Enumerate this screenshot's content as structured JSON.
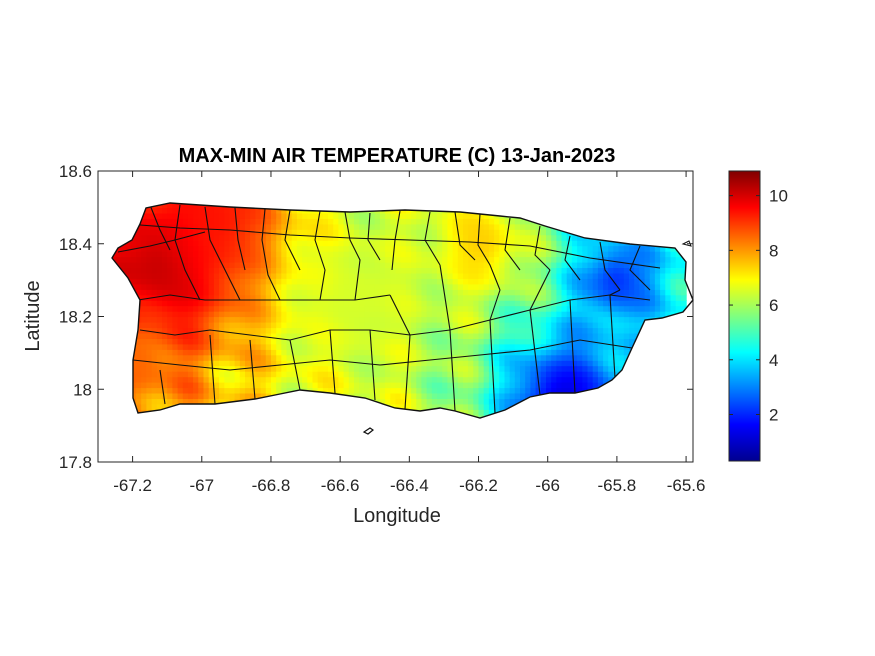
{
  "chart_data": {
    "type": "heatmap",
    "title": "MAX-MIN AIR TEMPERATURE (C) 13-Jan-2023",
    "xlabel": "Longitude",
    "ylabel": "Latitude",
    "xlim": [
      -67.3,
      -65.58
    ],
    "ylim": [
      17.8,
      18.6
    ],
    "xticks": [
      -67.2,
      -67,
      -66.8,
      -66.6,
      -66.4,
      -66.2,
      -66,
      -65.8,
      -65.6
    ],
    "xtick_labels": [
      "-67.2",
      "-67",
      "-66.8",
      "-66.6",
      "-66.4",
      "-66.2",
      "-66",
      "-65.8",
      "-65.6"
    ],
    "yticks": [
      17.8,
      18,
      18.2,
      18.4,
      18.6
    ],
    "ytick_labels": [
      "17.8",
      "18",
      "18.2",
      "18.4",
      "18.6"
    ],
    "colorbar": {
      "min": 0.3,
      "max": 10.9,
      "ticks": [
        2,
        4,
        6,
        8,
        10
      ],
      "tick_labels": [
        "2",
        "4",
        "6",
        "8",
        "10"
      ],
      "colormap": "jet"
    },
    "hotspots": [
      {
        "lon": -67.1,
        "lat": 18.35,
        "value": 10.5,
        "spread": 0.22
      },
      {
        "lon": -66.95,
        "lat": 18.45,
        "value": 9.5,
        "spread": 0.2
      },
      {
        "lon": -67.2,
        "lat": 18.08,
        "value": 8.5,
        "spread": 0.12
      },
      {
        "lon": -65.95,
        "lat": 17.97,
        "value": 1.3,
        "spread": 0.18
      },
      {
        "lon": -65.8,
        "lat": 18.3,
        "value": 2.2,
        "spread": 0.12
      },
      {
        "lon": -66.2,
        "lat": 18.4,
        "value": 7.5,
        "spread": 0.15
      },
      {
        "lon": -66.55,
        "lat": 18.25,
        "value": 6.5,
        "spread": 0.25
      }
    ]
  }
}
